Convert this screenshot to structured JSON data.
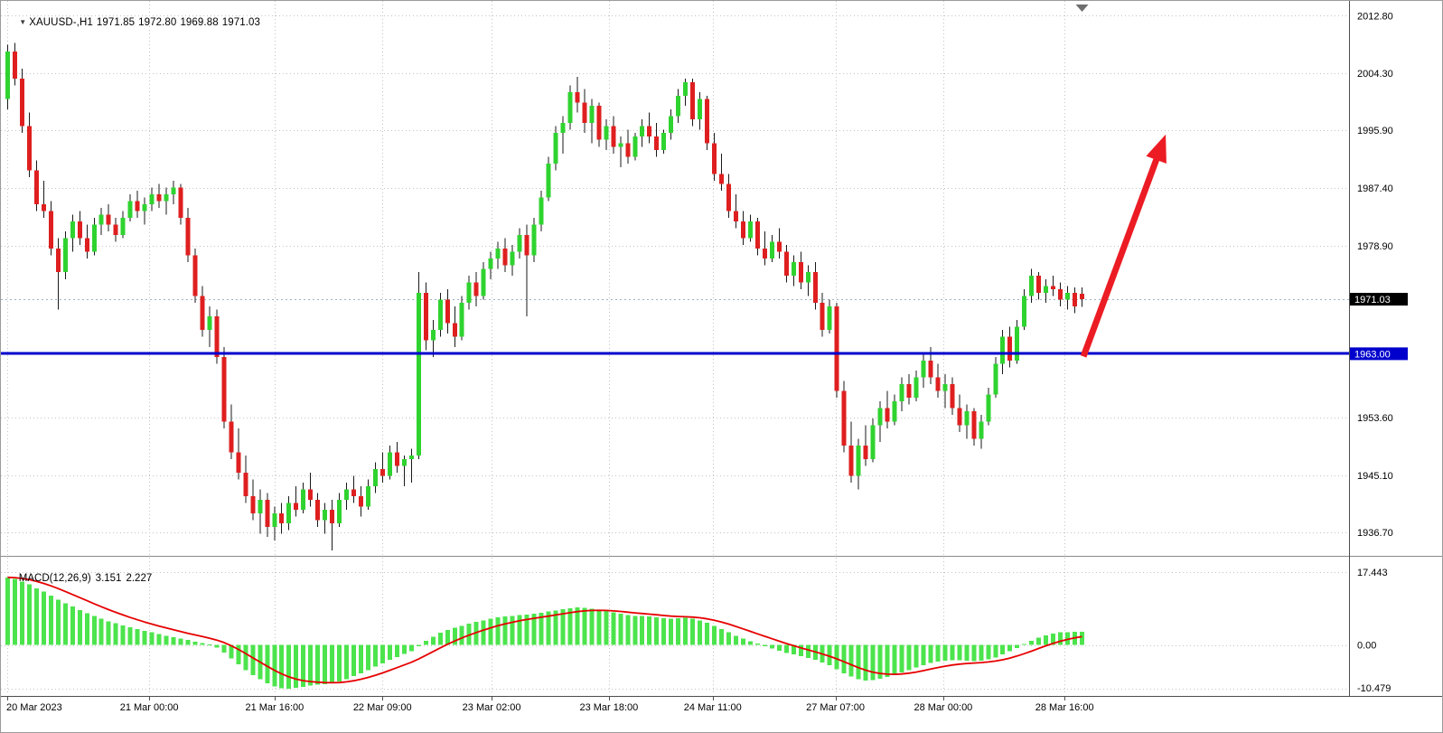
{
  "header": {
    "symbol": "XAUUSD-,H1",
    "open": "1971.85",
    "high": "1972.80",
    "low": "1969.88",
    "close": "1971.03"
  },
  "indicator": {
    "name": "MACD(12,26,9)",
    "macd_value": "3.151",
    "signal_value": "2.227"
  },
  "colors": {
    "bull": "#2fd32f",
    "bear": "#df1f1f",
    "wick": "#1a1a1a",
    "macd_bar": "#4ce44c",
    "macd_signal": "#e60000",
    "hline": "#0000cd",
    "bid_bg": "#000000",
    "grid": "#c3c3c3",
    "arrow": "#ec1c24",
    "axis_text": "#000000",
    "separator": "#8a8a8a"
  },
  "price_axis": {
    "tick_labels": [
      "2012.80",
      "2004.30",
      "1995.90",
      "1987.40",
      "1978.90",
      "1953.60",
      "1945.10",
      "1936.70"
    ],
    "tick_values": [
      2012.8,
      2004.3,
      1995.9,
      1987.4,
      1978.9,
      1953.6,
      1945.1,
      1936.7
    ],
    "bid": {
      "label": "1971.03",
      "value": 1971.03
    },
    "hline": {
      "label": "1963.00",
      "value": 1963.0
    }
  },
  "macd_axis": {
    "labels": [
      "17.443",
      "0.00",
      "-10.479"
    ],
    "values": [
      17.443,
      0,
      -10.479
    ]
  },
  "time_axis": {
    "labels": [
      {
        "text": "20 Mar 2023",
        "f": 0.005
      },
      {
        "text": "21 Mar 00:00",
        "f": 0.11
      },
      {
        "text": "21 Mar 16:00",
        "f": 0.203
      },
      {
        "text": "22 Mar 09:00",
        "f": 0.283
      },
      {
        "text": "23 Mar 02:00",
        "f": 0.364
      },
      {
        "text": "23 Mar 18:00",
        "f": 0.451
      },
      {
        "text": "24 Mar 11:00",
        "f": 0.528
      },
      {
        "text": "27 Mar 07:00",
        "f": 0.619
      },
      {
        "text": "28 Mar 00:00",
        "f": 0.699
      },
      {
        "text": "28 Mar 16:00",
        "f": 0.789
      }
    ]
  },
  "chart_data": {
    "type": "candlestick",
    "symbol": "XAUUSD",
    "timeframe": "H1",
    "title": "XAUUSD-,H1 1971.85 1972.80 1969.88 1971.03",
    "ylim": [
      1933.5,
      2014.7
    ],
    "candles": [
      [
        2000.5,
        2008.5,
        1999.0,
        2007.5
      ],
      [
        2007.5,
        2008.8,
        2002.5,
        2003.5
      ],
      [
        2003.5,
        2005.0,
        1995.5,
        1996.5
      ],
      [
        1996.5,
        1998.5,
        1989.0,
        1990.0
      ],
      [
        1990.0,
        1991.5,
        1984.0,
        1985.0
      ],
      [
        1985.0,
        1988.5,
        1983.0,
        1984.0
      ],
      [
        1984.0,
        1985.5,
        1977.5,
        1978.5
      ],
      [
        1978.5,
        1980.0,
        1969.5,
        1975.0
      ],
      [
        1975.0,
        1981.0,
        1974.0,
        1980.0
      ],
      [
        1980.0,
        1983.5,
        1978.0,
        1982.5
      ],
      [
        1982.5,
        1984.0,
        1979.0,
        1980.0
      ],
      [
        1980.0,
        1982.0,
        1977.0,
        1978.0
      ],
      [
        1978.0,
        1983.0,
        1977.5,
        1982.0
      ],
      [
        1982.0,
        1984.5,
        1980.5,
        1983.5
      ],
      [
        1983.5,
        1985.0,
        1981.0,
        1982.0
      ],
      [
        1982.0,
        1983.0,
        1979.5,
        1980.5
      ],
      [
        1980.5,
        1984.0,
        1980.0,
        1983.0
      ],
      [
        1983.0,
        1986.5,
        1982.5,
        1985.5
      ],
      [
        1985.5,
        1987.0,
        1983.0,
        1984.0
      ],
      [
        1984.0,
        1986.0,
        1982.0,
        1985.0
      ],
      [
        1985.0,
        1987.5,
        1984.0,
        1986.5
      ],
      [
        1986.5,
        1988.0,
        1984.5,
        1985.5
      ],
      [
        1985.5,
        1987.5,
        1983.5,
        1986.5
      ],
      [
        1986.5,
        1988.5,
        1985.0,
        1987.5
      ],
      [
        1987.5,
        1988.0,
        1982.0,
        1983.0
      ],
      [
        1983.0,
        1984.5,
        1976.5,
        1977.5
      ],
      [
        1977.5,
        1978.5,
        1970.5,
        1971.5
      ],
      [
        1971.5,
        1973.0,
        1965.5,
        1966.5
      ],
      [
        1966.5,
        1970.0,
        1964.0,
        1968.5
      ],
      [
        1968.5,
        1969.5,
        1961.5,
        1962.5
      ],
      [
        1962.5,
        1964.0,
        1952.0,
        1953.0
      ],
      [
        1953.0,
        1955.5,
        1947.5,
        1948.5
      ],
      [
        1948.5,
        1952.0,
        1944.5,
        1945.5
      ],
      [
        1945.5,
        1948.0,
        1941.0,
        1942.0
      ],
      [
        1942.0,
        1944.5,
        1938.5,
        1939.5
      ],
      [
        1939.5,
        1943.0,
        1936.5,
        1941.5
      ],
      [
        1941.5,
        1942.5,
        1936.0,
        1937.5
      ],
      [
        1937.5,
        1940.5,
        1935.5,
        1939.5
      ],
      [
        1939.5,
        1941.0,
        1936.5,
        1938.0
      ],
      [
        1938.0,
        1942.0,
        1937.0,
        1941.0
      ],
      [
        1941.0,
        1943.5,
        1939.0,
        1940.0
      ],
      [
        1940.0,
        1944.0,
        1939.5,
        1943.0
      ],
      [
        1943.0,
        1945.5,
        1940.5,
        1941.5
      ],
      [
        1941.5,
        1942.5,
        1937.5,
        1938.5
      ],
      [
        1938.5,
        1941.0,
        1936.5,
        1940.0
      ],
      [
        1940.0,
        1941.5,
        1934.0,
        1938.0
      ],
      [
        1938.0,
        1942.5,
        1937.5,
        1941.5
      ],
      [
        1941.5,
        1944.0,
        1940.0,
        1943.0
      ],
      [
        1943.0,
        1945.0,
        1941.0,
        1942.0
      ],
      [
        1942.0,
        1943.5,
        1939.0,
        1940.5
      ],
      [
        1940.5,
        1944.5,
        1940.0,
        1943.5
      ],
      [
        1943.5,
        1947.0,
        1942.5,
        1946.0
      ],
      [
        1946.0,
        1948.5,
        1944.0,
        1945.0
      ],
      [
        1945.0,
        1949.5,
        1944.5,
        1948.5
      ],
      [
        1948.5,
        1950.0,
        1945.5,
        1946.5
      ],
      [
        1946.5,
        1948.0,
        1943.5,
        1947.5
      ],
      [
        1947.5,
        1949.0,
        1944.0,
        1948.0
      ],
      [
        1948.0,
        1975.0,
        1947.5,
        1972.0
      ],
      [
        1972.0,
        1973.5,
        1963.5,
        1965.0
      ],
      [
        1965.0,
        1968.0,
        1962.5,
        1966.5
      ],
      [
        1966.5,
        1972.0,
        1965.5,
        1971.0
      ],
      [
        1971.0,
        1972.5,
        1966.0,
        1967.5
      ],
      [
        1967.5,
        1970.0,
        1964.0,
        1965.5
      ],
      [
        1965.5,
        1971.5,
        1965.0,
        1970.5
      ],
      [
        1970.5,
        1974.5,
        1969.5,
        1973.5
      ],
      [
        1973.5,
        1975.0,
        1970.0,
        1971.5
      ],
      [
        1971.5,
        1976.5,
        1971.0,
        1975.5
      ],
      [
        1975.5,
        1978.0,
        1974.0,
        1977.0
      ],
      [
        1977.0,
        1979.5,
        1975.5,
        1978.5
      ],
      [
        1978.5,
        1980.0,
        1975.0,
        1976.0
      ],
      [
        1976.0,
        1979.0,
        1974.5,
        1978.0
      ],
      [
        1978.0,
        1981.5,
        1977.0,
        1980.5
      ],
      [
        1980.5,
        1982.0,
        1968.5,
        1977.5
      ],
      [
        1977.5,
        1983.0,
        1976.5,
        1982.0
      ],
      [
        1982.0,
        1987.0,
        1981.0,
        1986.0
      ],
      [
        1986.0,
        1992.0,
        1985.5,
        1991.0
      ],
      [
        1991.0,
        1996.5,
        1990.0,
        1995.5
      ],
      [
        1995.5,
        1998.0,
        1992.5,
        1997.0
      ],
      [
        1997.0,
        2002.5,
        1996.0,
        2001.5
      ],
      [
        2001.5,
        2003.8,
        1998.5,
        2000.0
      ],
      [
        2000.0,
        2002.0,
        1995.5,
        1997.0
      ],
      [
        1997.0,
        2000.5,
        1994.0,
        1999.5
      ],
      [
        1999.5,
        2000.0,
        1993.5,
        1994.5
      ],
      [
        1994.5,
        1997.5,
        1993.0,
        1996.5
      ],
      [
        1996.5,
        1998.0,
        1992.5,
        1993.5
      ],
      [
        1993.5,
        1995.0,
        1990.5,
        1994.0
      ],
      [
        1994.0,
        1996.0,
        1991.0,
        1992.0
      ],
      [
        1992.0,
        1995.5,
        1991.5,
        1995.0
      ],
      [
        1995.0,
        1997.5,
        1993.5,
        1996.5
      ],
      [
        1996.5,
        1998.5,
        1994.0,
        1995.0
      ],
      [
        1995.0,
        1997.0,
        1992.0,
        1993.0
      ],
      [
        1993.0,
        1996.0,
        1992.5,
        1995.5
      ],
      [
        1995.5,
        1999.0,
        1994.5,
        1998.0
      ],
      [
        1998.0,
        2002.0,
        1997.0,
        2001.0
      ],
      [
        2001.0,
        2003.5,
        1999.5,
        2003.0
      ],
      [
        2003.0,
        2003.5,
        1996.5,
        1997.5
      ],
      [
        1997.5,
        2001.5,
        1996.0,
        2000.5
      ],
      [
        2000.5,
        2001.0,
        1993.0,
        1994.0
      ],
      [
        1994.0,
        1995.5,
        1988.5,
        1989.5
      ],
      [
        1989.5,
        1992.5,
        1987.0,
        1988.0
      ],
      [
        1988.0,
        1989.5,
        1983.0,
        1984.0
      ],
      [
        1984.0,
        1986.5,
        1981.5,
        1982.5
      ],
      [
        1982.5,
        1984.0,
        1979.0,
        1980.0
      ],
      [
        1980.0,
        1983.5,
        1979.5,
        1982.5
      ],
      [
        1982.5,
        1983.0,
        1977.5,
        1978.5
      ],
      [
        1978.5,
        1981.0,
        1976.0,
        1977.0
      ],
      [
        1977.0,
        1980.5,
        1976.5,
        1979.5
      ],
      [
        1979.5,
        1981.5,
        1977.0,
        1978.0
      ],
      [
        1978.0,
        1979.0,
        1973.5,
        1974.5
      ],
      [
        1974.5,
        1977.5,
        1973.0,
        1976.5
      ],
      [
        1976.5,
        1978.0,
        1972.5,
        1973.5
      ],
      [
        1973.5,
        1976.0,
        1971.5,
        1975.0
      ],
      [
        1975.0,
        1976.5,
        1969.5,
        1970.5
      ],
      [
        1970.5,
        1972.0,
        1965.5,
        1966.5
      ],
      [
        1966.5,
        1971.0,
        1966.0,
        1970.0
      ],
      [
        1970.0,
        1970.5,
        1956.5,
        1957.5
      ],
      [
        1957.5,
        1959.0,
        1948.5,
        1949.5
      ],
      [
        1949.5,
        1953.0,
        1944.0,
        1945.0
      ],
      [
        1945.0,
        1950.5,
        1943.0,
        1949.5
      ],
      [
        1949.5,
        1952.5,
        1946.5,
        1947.5
      ],
      [
        1947.5,
        1953.5,
        1947.0,
        1952.5
      ],
      [
        1952.5,
        1956.0,
        1950.0,
        1955.0
      ],
      [
        1955.0,
        1957.5,
        1952.0,
        1953.0
      ],
      [
        1953.0,
        1957.0,
        1952.5,
        1956.0
      ],
      [
        1956.0,
        1959.5,
        1954.5,
        1958.5
      ],
      [
        1958.5,
        1960.0,
        1955.5,
        1956.5
      ],
      [
        1956.5,
        1960.5,
        1956.0,
        1959.5
      ],
      [
        1959.5,
        1963.0,
        1958.0,
        1962.0
      ],
      [
        1962.0,
        1964.0,
        1958.5,
        1959.5
      ],
      [
        1959.5,
        1961.5,
        1956.5,
        1957.5
      ],
      [
        1957.5,
        1960.0,
        1955.0,
        1958.5
      ],
      [
        1958.5,
        1959.5,
        1954.0,
        1955.0
      ],
      [
        1955.0,
        1957.0,
        1951.5,
        1952.5
      ],
      [
        1952.5,
        1955.5,
        1950.5,
        1954.5
      ],
      [
        1954.5,
        1955.0,
        1949.5,
        1950.5
      ],
      [
        1950.5,
        1954.0,
        1949.0,
        1953.0
      ],
      [
        1953.0,
        1958.0,
        1952.5,
        1957.0
      ],
      [
        1957.0,
        1962.5,
        1956.5,
        1961.5
      ],
      [
        1961.5,
        1966.5,
        1960.0,
        1965.5
      ],
      [
        1965.5,
        1967.0,
        1961.0,
        1962.0
      ],
      [
        1962.0,
        1968.0,
        1961.5,
        1967.0
      ],
      [
        1967.0,
        1972.5,
        1966.5,
        1971.5
      ],
      [
        1971.5,
        1975.5,
        1970.5,
        1974.5
      ],
      [
        1974.5,
        1975.0,
        1971.0,
        1972.0
      ],
      [
        1972.0,
        1974.0,
        1970.5,
        1973.0
      ],
      [
        1973.0,
        1974.5,
        1971.5,
        1972.5
      ],
      [
        1972.5,
        1973.5,
        1970.0,
        1971.0
      ],
      [
        1971.0,
        1973.0,
        1969.5,
        1972.0
      ],
      [
        1972.0,
        1972.8,
        1969.0,
        1970.0
      ],
      [
        1971.85,
        1972.8,
        1969.88,
        1971.03
      ]
    ],
    "macd": {
      "type": "bar+line",
      "params": [
        12,
        26,
        9
      ],
      "ylim": [
        -12.0,
        20.7
      ],
      "last_macd": 3.151,
      "last_signal": 2.227,
      "signal_method": "ema9_of_histogram",
      "histogram": [
        16.2,
        15.8,
        15.2,
        14.5,
        13.6,
        12.8,
        11.8,
        10.9,
        10.0,
        9.2,
        8.4,
        7.6,
        6.9,
        6.3,
        5.7,
        5.2,
        4.7,
        4.2,
        3.8,
        3.4,
        3.0,
        2.6,
        2.2,
        1.9,
        1.5,
        1.2,
        0.8,
        0.4,
        0.1,
        -0.6,
        -1.8,
        -3.2,
        -4.6,
        -6.0,
        -7.2,
        -8.2,
        -9.2,
        -9.9,
        -10.4,
        -10.5,
        -10.3,
        -10.0,
        -9.7,
        -9.5,
        -9.4,
        -9.2,
        -8.8,
        -8.2,
        -7.5,
        -6.8,
        -6.0,
        -5.2,
        -4.4,
        -3.6,
        -2.9,
        -2.2,
        -1.5,
        -0.3,
        1.0,
        2.0,
        2.9,
        3.6,
        4.1,
        4.6,
        5.1,
        5.5,
        5.9,
        6.3,
        6.6,
        6.8,
        7.0,
        7.2,
        7.3,
        7.5,
        7.7,
        8.0,
        8.3,
        8.6,
        8.8,
        9.0,
        8.9,
        8.7,
        8.4,
        8.1,
        7.8,
        7.5,
        7.2,
        7.0,
        6.9,
        6.8,
        6.6,
        6.4,
        6.3,
        6.4,
        6.5,
        6.3,
        5.9,
        5.3,
        4.6,
        3.8,
        3.0,
        2.2,
        1.5,
        0.9,
        0.3,
        -0.3,
        -0.9,
        -1.4,
        -1.9,
        -2.3,
        -2.7,
        -3.1,
        -3.6,
        -4.2,
        -4.9,
        -5.8,
        -6.8,
        -7.6,
        -8.2,
        -8.5,
        -8.4,
        -8.1,
        -7.7,
        -7.2,
        -6.6,
        -6.0,
        -5.4,
        -4.8,
        -4.3,
        -4.0,
        -3.8,
        -3.7,
        -3.7,
        -3.8,
        -3.9,
        -3.8,
        -3.5,
        -3.0,
        -2.3,
        -1.5,
        -0.7,
        0.2,
        1.0,
        1.7,
        2.3,
        2.7,
        3.0,
        3.1,
        3.2,
        3.151
      ]
    },
    "annotations": {
      "hline": {
        "price": 1963.0,
        "label": "1963.00"
      },
      "arrow": {
        "fx1": 0.803,
        "price1": 1962.6,
        "fx2": 0.864,
        "price2": 1995.3
      }
    }
  }
}
